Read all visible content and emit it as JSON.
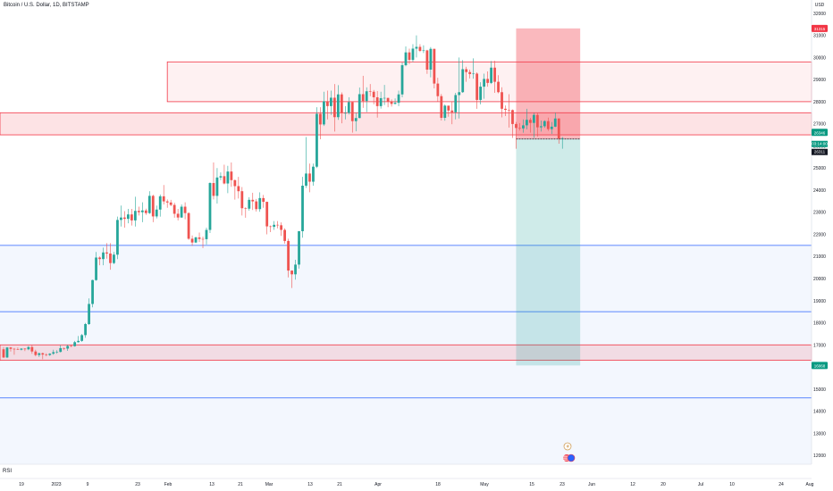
{
  "header": {
    "title": "Bitcoin / U.S. Dollar, 1D, BITSTAMP"
  },
  "rsi_label": "RSI",
  "icons": {
    "lightning": "lightning-icon",
    "flag": "us-flag-icon"
  },
  "colors": {
    "up": "#26a69a",
    "down": "#ef5350",
    "zone_red": "#f23645",
    "blue_line": "#2962ff",
    "stop_bg": "#f7a9a7",
    "target_bg": "#cfe9e4",
    "current_price_bg": "#089981",
    "stop_label_bg": "#f23645"
  },
  "chart_data": {
    "type": "candlestick",
    "title": "Bitcoin / U.S. Dollar, 1D, BITSTAMP",
    "y_axis": {
      "unit_label": "USD",
      "ticks": [
        12000,
        13000,
        14000,
        15000,
        16000,
        17000,
        18000,
        19000,
        20000,
        21000,
        22000,
        23000,
        24000,
        25000,
        26000,
        27000,
        28000,
        29000,
        30000,
        31000,
        32000
      ],
      "range": [
        11600,
        32600
      ]
    },
    "x_axis": {
      "ticks": [
        "19",
        "2023",
        "9",
        "23",
        "Feb",
        "13",
        "21",
        "Mar",
        "13",
        "21",
        "Apr",
        "18",
        "May",
        "15",
        "23",
        "Jun",
        "12",
        "20",
        "Jul",
        "10",
        "24",
        "Aug"
      ],
      "range": [
        "2022-12-19",
        "2023-08-03"
      ]
    },
    "price_labels": {
      "stop": "31315",
      "current": "26346",
      "countdown": "03:14:00",
      "entry": "26311",
      "target": "16068"
    },
    "zones": [
      {
        "top": 29800,
        "bottom": 28000
      },
      {
        "top": 27500,
        "bottom": 26500
      },
      {
        "top": 17000,
        "bottom": 16300
      }
    ],
    "lines": [
      21500,
      18500,
      14600
    ],
    "position": {
      "entry": 26311,
      "stop": 31315,
      "target": 16068,
      "start": "2023-05-12",
      "end": "2023-05-30"
    },
    "candles": [
      [
        "2022-12-19",
        16800,
        16900,
        16400,
        16430
      ],
      [
        "2022-12-20",
        16430,
        16900,
        16400,
        16880
      ],
      [
        "2022-12-21",
        16880,
        16900,
        16700,
        16820
      ],
      [
        "2022-12-22",
        16820,
        16860,
        16550,
        16800
      ],
      [
        "2022-12-23",
        16800,
        16880,
        16770,
        16780
      ],
      [
        "2022-12-24",
        16780,
        16850,
        16750,
        16830
      ],
      [
        "2022-12-25",
        16830,
        16850,
        16720,
        16800
      ],
      [
        "2022-12-26",
        16800,
        16950,
        16760,
        16900
      ],
      [
        "2022-12-27",
        16900,
        16980,
        16600,
        16700
      ],
      [
        "2022-12-28",
        16700,
        16780,
        16480,
        16540
      ],
      [
        "2022-12-29",
        16540,
        16650,
        16450,
        16620
      ],
      [
        "2022-12-30",
        16620,
        16650,
        16350,
        16560
      ],
      [
        "2022-12-31",
        16560,
        16620,
        16480,
        16540
      ],
      [
        "2023-01-01",
        16540,
        16620,
        16500,
        16600
      ],
      [
        "2023-01-02",
        16600,
        16780,
        16550,
        16670
      ],
      [
        "2023-01-03",
        16670,
        16760,
        16600,
        16680
      ],
      [
        "2023-01-04",
        16680,
        16980,
        16660,
        16850
      ],
      [
        "2023-01-05",
        16850,
        16880,
        16760,
        16830
      ],
      [
        "2023-01-06",
        16830,
        17000,
        16730,
        16950
      ],
      [
        "2023-01-07",
        16950,
        16980,
        16900,
        16940
      ],
      [
        "2023-01-08",
        16940,
        17180,
        16920,
        17120
      ],
      [
        "2023-01-09",
        17120,
        17400,
        17100,
        17180
      ],
      [
        "2023-01-10",
        17180,
        17490,
        17140,
        17440
      ],
      [
        "2023-01-11",
        17440,
        17990,
        17320,
        17940
      ],
      [
        "2023-01-12",
        17940,
        19100,
        17900,
        18850
      ],
      [
        "2023-01-13",
        18850,
        19950,
        18700,
        19930
      ],
      [
        "2023-01-14",
        19930,
        21200,
        19900,
        20950
      ],
      [
        "2023-01-15",
        20950,
        21000,
        20600,
        20880
      ],
      [
        "2023-01-16",
        20880,
        21400,
        20600,
        21180
      ],
      [
        "2023-01-17",
        21180,
        21600,
        20900,
        21130
      ],
      [
        "2023-01-18",
        21130,
        21600,
        20400,
        20700
      ],
      [
        "2023-01-19",
        20700,
        21200,
        20650,
        21080
      ],
      [
        "2023-01-20",
        21080,
        22800,
        20880,
        22650
      ],
      [
        "2023-01-21",
        22650,
        23300,
        22350,
        22760
      ],
      [
        "2023-01-22",
        22760,
        23050,
        22300,
        22700
      ],
      [
        "2023-01-23",
        22700,
        23150,
        22500,
        22900
      ],
      [
        "2023-01-24",
        22900,
        23150,
        22400,
        22630
      ],
      [
        "2023-01-25",
        22630,
        23700,
        22350,
        23060
      ],
      [
        "2023-01-26",
        23060,
        23250,
        22850,
        23000
      ],
      [
        "2023-01-27",
        23000,
        23450,
        22550,
        23080
      ],
      [
        "2023-01-28",
        23080,
        23160,
        22880,
        22960
      ],
      [
        "2023-01-29",
        22960,
        23950,
        22920,
        23740
      ],
      [
        "2023-01-30",
        23740,
        23790,
        22550,
        22810
      ],
      [
        "2023-01-31",
        22810,
        23300,
        22720,
        23120
      ],
      [
        "2023-02-01",
        23120,
        23800,
        22800,
        23720
      ],
      [
        "2023-02-02",
        23720,
        24230,
        23350,
        23490
      ],
      [
        "2023-02-03",
        23490,
        23580,
        23200,
        23440
      ],
      [
        "2023-02-04",
        23440,
        23560,
        23270,
        23330
      ],
      [
        "2023-02-05",
        23330,
        23430,
        22750,
        22930
      ],
      [
        "2023-02-06",
        22930,
        23150,
        22630,
        22760
      ],
      [
        "2023-02-07",
        22760,
        23350,
        22740,
        23250
      ],
      [
        "2023-02-08",
        23250,
        23450,
        22680,
        22960
      ],
      [
        "2023-02-09",
        22960,
        23000,
        21750,
        21800
      ],
      [
        "2023-02-10",
        21800,
        21950,
        21480,
        21630
      ],
      [
        "2023-02-11",
        21630,
        21900,
        21600,
        21860
      ],
      [
        "2023-02-12",
        21860,
        22080,
        21650,
        21790
      ],
      [
        "2023-02-13",
        21790,
        21900,
        21380,
        21780
      ],
      [
        "2023-02-14",
        21780,
        22300,
        21540,
        22200
      ],
      [
        "2023-02-15",
        22200,
        24350,
        22060,
        24320
      ],
      [
        "2023-02-16",
        24320,
        25250,
        23580,
        23740
      ],
      [
        "2023-02-17",
        23740,
        25000,
        23390,
        24570
      ],
      [
        "2023-02-18",
        24570,
        24800,
        24450,
        24630
      ],
      [
        "2023-02-19",
        24630,
        25150,
        24260,
        24300
      ],
      [
        "2023-02-20",
        24300,
        25100,
        23860,
        24840
      ],
      [
        "2023-02-21",
        24840,
        25250,
        24150,
        24450
      ],
      [
        "2023-02-22",
        24450,
        24480,
        23570,
        24180
      ],
      [
        "2023-02-23",
        24180,
        24600,
        23620,
        23950
      ],
      [
        "2023-02-24",
        23950,
        24140,
        22850,
        23180
      ],
      [
        "2023-02-25",
        23180,
        23220,
        22750,
        23160
      ],
      [
        "2023-02-26",
        23160,
        23680,
        23070,
        23560
      ],
      [
        "2023-02-27",
        23560,
        23880,
        23100,
        23490
      ],
      [
        "2023-02-28",
        23490,
        23600,
        23030,
        23140
      ],
      [
        "2023-03-01",
        23140,
        23900,
        23020,
        23640
      ],
      [
        "2023-03-02",
        23640,
        23780,
        23200,
        23470
      ],
      [
        "2023-03-03",
        23470,
        23480,
        22000,
        22360
      ],
      [
        "2023-03-04",
        22360,
        22400,
        22100,
        22340
      ],
      [
        "2023-03-05",
        22340,
        22600,
        22200,
        22430
      ],
      [
        "2023-03-06",
        22430,
        22600,
        22270,
        22410
      ],
      [
        "2023-03-07",
        22410,
        22540,
        21930,
        22200
      ],
      [
        "2023-03-08",
        22200,
        22270,
        21580,
        21700
      ],
      [
        "2023-03-09",
        21700,
        21800,
        20050,
        20360
      ],
      [
        "2023-03-10",
        20360,
        20370,
        19570,
        20190
      ],
      [
        "2023-03-11",
        20190,
        20850,
        19950,
        20630
      ],
      [
        "2023-03-12",
        20630,
        22150,
        20450,
        22140
      ],
      [
        "2023-03-13",
        22140,
        24600,
        21850,
        24200
      ],
      [
        "2023-03-14",
        24200,
        26400,
        24100,
        24750
      ],
      [
        "2023-03-15",
        24750,
        25200,
        23900,
        24380
      ],
      [
        "2023-03-16",
        24380,
        25200,
        24200,
        25060
      ],
      [
        "2023-03-17",
        25060,
        27750,
        25000,
        27450
      ],
      [
        "2023-03-18",
        27450,
        27750,
        26300,
        26970
      ],
      [
        "2023-03-19",
        26970,
        28450,
        26900,
        28020
      ],
      [
        "2023-03-20",
        28020,
        28500,
        27200,
        27800
      ],
      [
        "2023-03-21",
        27800,
        28500,
        27400,
        28180
      ],
      [
        "2023-03-22",
        28180,
        28800,
        26650,
        27300
      ],
      [
        "2023-03-23",
        27300,
        28750,
        27180,
        28330
      ],
      [
        "2023-03-24",
        28330,
        28420,
        27020,
        27480
      ],
      [
        "2023-03-25",
        27480,
        27800,
        27200,
        27490
      ],
      [
        "2023-03-26",
        27490,
        28200,
        27420,
        27980
      ],
      [
        "2023-03-27",
        27980,
        28000,
        26600,
        27120
      ],
      [
        "2023-03-28",
        27120,
        27500,
        26660,
        27260
      ],
      [
        "2023-03-29",
        27260,
        28640,
        27250,
        28340
      ],
      [
        "2023-03-30",
        28340,
        29170,
        27720,
        28030
      ],
      [
        "2023-03-31",
        28030,
        28650,
        27530,
        28470
      ],
      [
        "2023-04-01",
        28470,
        28800,
        28250,
        28450
      ],
      [
        "2023-04-02",
        28450,
        28530,
        27880,
        28200
      ],
      [
        "2023-04-03",
        28200,
        28480,
        27280,
        27800
      ],
      [
        "2023-04-04",
        27800,
        28450,
        27690,
        28160
      ],
      [
        "2023-04-05",
        28160,
        28760,
        27850,
        28170
      ],
      [
        "2023-04-06",
        28170,
        28180,
        27750,
        28020
      ],
      [
        "2023-04-07",
        28020,
        28100,
        27780,
        27900
      ],
      [
        "2023-04-08",
        27900,
        28150,
        27880,
        27950
      ],
      [
        "2023-04-09",
        27950,
        28500,
        27800,
        28330
      ],
      [
        "2023-04-10",
        28330,
        29770,
        28200,
        29650
      ],
      [
        "2023-04-11",
        29650,
        30500,
        29600,
        30230
      ],
      [
        "2023-04-12",
        30230,
        30400,
        29700,
        29890
      ],
      [
        "2023-04-13",
        29890,
        30600,
        29800,
        30400
      ],
      [
        "2023-04-14",
        30400,
        31000,
        30000,
        30480
      ],
      [
        "2023-04-15",
        30480,
        30600,
        30250,
        30300
      ],
      [
        "2023-04-16",
        30300,
        30550,
        30200,
        30320
      ],
      [
        "2023-04-17",
        30320,
        30350,
        29260,
        29450
      ],
      [
        "2023-04-18",
        29450,
        30470,
        29100,
        30390
      ],
      [
        "2023-04-19",
        30390,
        30400,
        28600,
        28820
      ],
      [
        "2023-04-20",
        28820,
        29080,
        28000,
        28250
      ],
      [
        "2023-04-21",
        28250,
        28350,
        27150,
        27270
      ],
      [
        "2023-04-22",
        27270,
        27880,
        27140,
        27820
      ],
      [
        "2023-04-23",
        27820,
        27820,
        27320,
        27600
      ],
      [
        "2023-04-24",
        27600,
        28000,
        26980,
        27520
      ],
      [
        "2023-04-25",
        27520,
        28400,
        27200,
        28300
      ],
      [
        "2023-04-26",
        28300,
        30000,
        27240,
        28430
      ],
      [
        "2023-04-27",
        28430,
        29880,
        28400,
        29470
      ],
      [
        "2023-04-28",
        29470,
        29580,
        28900,
        29340
      ],
      [
        "2023-04-29",
        29340,
        29450,
        29050,
        29250
      ],
      [
        "2023-04-30",
        29250,
        29960,
        29040,
        29270
      ],
      [
        "2023-05-01",
        29270,
        29330,
        27680,
        28080
      ],
      [
        "2023-05-02",
        28080,
        28880,
        27880,
        28680
      ],
      [
        "2023-05-03",
        28680,
        29270,
        28130,
        29030
      ],
      [
        "2023-05-04",
        29030,
        29370,
        28680,
        28850
      ],
      [
        "2023-05-05",
        28850,
        29840,
        28800,
        29540
      ],
      [
        "2023-05-06",
        29540,
        29850,
        28400,
        28900
      ],
      [
        "2023-05-07",
        28900,
        29200,
        28380,
        28430
      ],
      [
        "2023-05-08",
        28430,
        28650,
        27290,
        27680
      ],
      [
        "2023-05-09",
        27680,
        27830,
        27350,
        27630
      ],
      [
        "2023-05-10",
        27630,
        28340,
        26830,
        27620
      ],
      [
        "2023-05-11",
        27620,
        27650,
        26360,
        26990
      ],
      [
        "2023-05-12",
        26990,
        27080,
        25870,
        26810
      ],
      [
        "2023-05-13",
        26810,
        27030,
        26700,
        26790
      ],
      [
        "2023-05-14",
        26790,
        27200,
        26600,
        26930
      ],
      [
        "2023-05-15",
        26930,
        27680,
        26750,
        27180
      ],
      [
        "2023-05-16",
        27180,
        27270,
        26600,
        27040
      ],
      [
        "2023-05-17",
        27040,
        27490,
        26360,
        27400
      ],
      [
        "2023-05-18",
        27400,
        27480,
        26420,
        26840
      ],
      [
        "2023-05-19",
        26840,
        27150,
        26650,
        26890
      ],
      [
        "2023-05-20",
        26890,
        27160,
        26820,
        27120
      ],
      [
        "2023-05-21",
        27120,
        27280,
        26680,
        26760
      ],
      [
        "2023-05-22",
        26760,
        27080,
        26540,
        26870
      ],
      [
        "2023-05-23",
        26870,
        27500,
        26850,
        27240
      ],
      [
        "2023-05-24",
        27240,
        27250,
        26100,
        26340
      ],
      [
        "2023-05-25",
        26340,
        26400,
        25870,
        26346
      ]
    ]
  }
}
